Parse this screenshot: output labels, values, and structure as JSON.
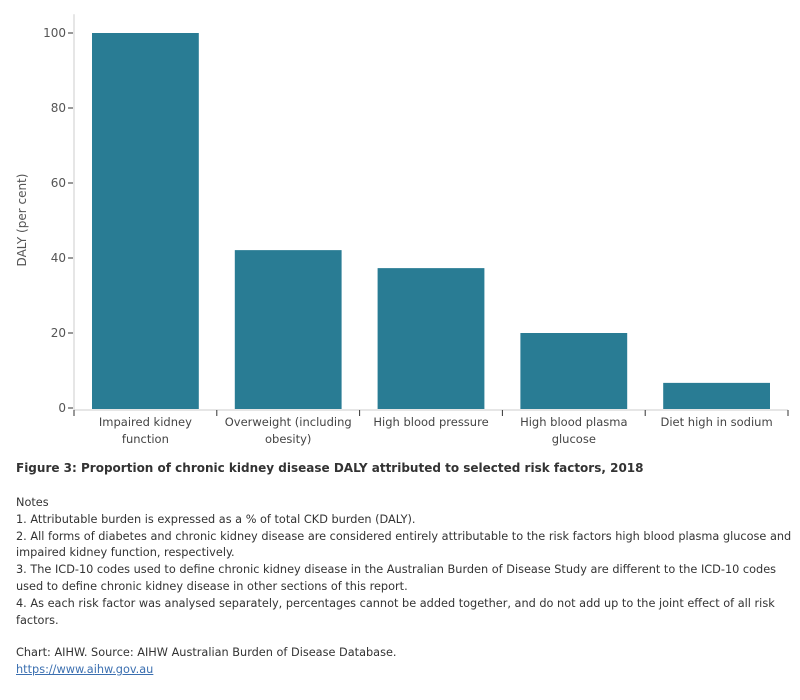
{
  "chart_data": {
    "type": "bar",
    "categories": [
      [
        "Impaired kidney",
        "function"
      ],
      [
        "Overweight (including",
        "obesity)"
      ],
      [
        "High blood pressure"
      ],
      [
        "High blood plasma",
        "glucose"
      ],
      [
        "Diet high in sodium"
      ]
    ],
    "values": [
      100,
      42.1,
      37.3,
      20.0,
      6.7
    ],
    "ylabel": "DALY (per cent)",
    "xlabel": "",
    "ylim": [
      0,
      105
    ],
    "yticks": [
      0,
      20,
      40,
      60,
      80,
      100
    ],
    "grid": false,
    "color": "#297c94"
  },
  "caption": "Figure 3: Proportion of chronic kidney disease DALY attributed to selected risk factors, 2018",
  "notes": {
    "heading": "Notes",
    "items": [
      "1. Attributable burden is expressed as a % of total CKD burden (DALY).",
      "2. All forms of diabetes and chronic kidney disease are considered entirely attributable to the risk factors high blood plasma glucose and impaired kidney function, respectively.",
      "3. The ICD-10 codes used to define chronic kidney disease in the Australian Burden of Disease Study are different to the ICD-10 codes used to define chronic kidney disease in other sections of this report.",
      "4. As each risk factor was analysed separately, percentages cannot be added together, and do not add up to the joint effect of all risk factors."
    ]
  },
  "source": {
    "text": "Chart: AIHW. Source: AIHW Australian Burden of Disease Database.",
    "link": "https://www.aihw.gov.au"
  }
}
